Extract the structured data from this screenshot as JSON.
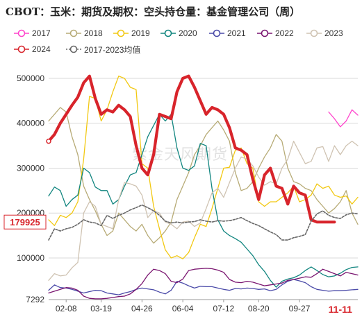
{
  "chart_data": {
    "type": "line",
    "title": "CBOT：玉米：期货及期权：空头持仓量：基金管理公司（周）",
    "ylim": [
      7292,
      520000
    ],
    "y_ticks": [
      500000,
      400000,
      300000,
      200000,
      100000,
      7292
    ],
    "y_tick_labels": [
      "500000",
      "400000",
      "300000",
      "200000",
      "100000",
      "7292"
    ],
    "x_ticks": [
      3,
      9,
      16,
      23,
      30,
      36,
      43
    ],
    "x_tick_labels": [
      "02-08",
      "03-19",
      "04-26",
      "06-04",
      "07-12",
      "08-20",
      "09-27"
    ],
    "x_highlight": {
      "x": 50,
      "label": "11-11"
    },
    "last_value_label": "179925",
    "grid": true,
    "legend_position": "top",
    "series": [
      {
        "name": "2017",
        "color": "#ff44cc",
        "width": 1.3,
        "dash": false,
        "x": [
          48,
          49,
          50,
          51,
          52,
          53
        ],
        "values": [
          425000,
          410000,
          392000,
          405000,
          430000,
          418000
        ]
      },
      {
        "name": "2018",
        "color": "#b7ab76",
        "width": 1.3,
        "dash": false,
        "x": [
          0,
          1,
          2,
          3,
          4,
          5,
          6,
          7,
          8,
          9,
          10,
          11,
          12,
          13,
          14,
          15,
          16,
          17,
          18,
          19,
          20,
          21,
          22,
          23,
          24,
          25,
          26,
          27,
          28,
          29,
          30,
          31,
          32,
          33,
          34,
          35,
          36,
          37,
          38,
          39,
          40,
          41,
          42,
          43,
          44,
          45,
          46,
          47,
          48,
          49,
          50,
          51,
          52,
          53
        ],
        "values": [
          405000,
          420000,
          435000,
          425000,
          370000,
          330000,
          260000,
          230000,
          205000,
          175000,
          150000,
          160000,
          200000,
          185000,
          170000,
          160000,
          175000,
          150000,
          133000,
          145000,
          160000,
          180000,
          230000,
          260000,
          290000,
          330000,
          350000,
          375000,
          390000,
          405000,
          385000,
          360000,
          290000,
          250000,
          255000,
          270000,
          300000,
          325000,
          345000,
          375000,
          360000,
          300000,
          270000,
          265000,
          255000,
          250000,
          230000,
          215000,
          200000,
          210000,
          225000,
          250000,
          200000,
          175000
        ]
      },
      {
        "name": "2019",
        "color": "#f2c811",
        "width": 1.3,
        "dash": false,
        "x": [
          0,
          1,
          2,
          3,
          4,
          5,
          6,
          7,
          8,
          9,
          10,
          11,
          12,
          13,
          14,
          15,
          16,
          17,
          18,
          19,
          20,
          21,
          22,
          23,
          24,
          25,
          26,
          27,
          28,
          29,
          30,
          31,
          32,
          33,
          34,
          35,
          36,
          37,
          38,
          39,
          40,
          41,
          42,
          43,
          44,
          45,
          46,
          47,
          48,
          49,
          50,
          51,
          52,
          53
        ],
        "values": [
          185000,
          172000,
          195000,
          190000,
          200000,
          225000,
          320000,
          460000,
          455000,
          405000,
          430000,
          470000,
          505000,
          500000,
          480000,
          475000,
          310000,
          300000,
          215000,
          165000,
          118000,
          100000,
          105000,
          98000,
          112000,
          145000,
          175000,
          170000,
          210000,
          255000,
          300000,
          302000,
          340000,
          345000,
          310000,
          300000,
          225000,
          215000,
          225000,
          225000,
          235000,
          245000,
          260000,
          225000,
          230000,
          240000,
          265000,
          255000,
          260000,
          240000,
          235000,
          238000,
          220000,
          235000
        ]
      },
      {
        "name": "2020",
        "color": "#11857f",
        "width": 1.3,
        "dash": false,
        "x": [
          0,
          1,
          2,
          3,
          4,
          5,
          6,
          7,
          8,
          9,
          10,
          11,
          12,
          13,
          14,
          15,
          16,
          17,
          18,
          19,
          20,
          21,
          22,
          23,
          24,
          25,
          26,
          27,
          28,
          29,
          30,
          31,
          32,
          33,
          34,
          35,
          36,
          37,
          38,
          39,
          40,
          41,
          42,
          43,
          44,
          45,
          46,
          47,
          48,
          49,
          50,
          51,
          52,
          53
        ],
        "values": [
          238000,
          258000,
          250000,
          215000,
          230000,
          240000,
          300000,
          290000,
          258000,
          250000,
          250000,
          220000,
          230000,
          260000,
          285000,
          290000,
          330000,
          370000,
          395000,
          420000,
          405000,
          420000,
          345000,
          300000,
          295000,
          305000,
          355000,
          350000,
          255000,
          185000,
          160000,
          150000,
          143000,
          135000,
          120000,
          105000,
          85000,
          70000,
          50000,
          35000,
          48000,
          53000,
          56000,
          62000,
          72000,
          80000,
          72000,
          63000,
          58000,
          60000,
          66000,
          74000,
          79000,
          80000
        ]
      },
      {
        "name": "2021",
        "color": "#4a4aa8",
        "width": 1.3,
        "dash": false,
        "x": [
          0,
          1,
          2,
          3,
          4,
          5,
          6,
          7,
          8,
          9,
          10,
          11,
          12,
          13,
          14,
          15,
          16,
          17,
          18,
          19,
          20,
          21,
          22,
          23,
          24,
          25,
          26,
          27,
          28,
          29,
          30,
          31,
          32,
          33,
          34,
          35,
          36,
          37,
          38,
          39,
          40,
          41,
          42,
          43,
          44,
          45,
          46,
          47,
          48,
          49,
          50,
          51,
          52,
          53
        ],
        "values": [
          28000,
          40000,
          34000,
          33000,
          30000,
          26000,
          22000,
          25000,
          28000,
          27000,
          22000,
          20000,
          18000,
          22000,
          25000,
          30000,
          33000,
          31000,
          29000,
          24000,
          20000,
          28000,
          48000,
          44000,
          38000,
          33000,
          37000,
          36000,
          36000,
          33000,
          30000,
          28000,
          32000,
          31000,
          33000,
          32000,
          30000,
          31000,
          27000,
          30000,
          40000,
          48000,
          52000,
          49000,
          45000,
          36000,
          30000,
          28000,
          26000,
          27000,
          27000,
          28000,
          29000,
          30000
        ]
      },
      {
        "name": "2022",
        "color": "#7a1570",
        "width": 1.3,
        "dash": false,
        "x": [
          0,
          1,
          2,
          3,
          4,
          5,
          6,
          7,
          8,
          9,
          10,
          11,
          12,
          13,
          14,
          15,
          16,
          17,
          18,
          19,
          20,
          21,
          22,
          23,
          24,
          25,
          26,
          27,
          28,
          29,
          30,
          31,
          32,
          33,
          34,
          35,
          36,
          37,
          38,
          39,
          40,
          41,
          42,
          43,
          44,
          45,
          46,
          47,
          48,
          49,
          50,
          51,
          52,
          53
        ],
        "values": [
          22000,
          26000,
          30000,
          34000,
          33000,
          28000,
          15000,
          10000,
          9000,
          9000,
          10000,
          12000,
          14000,
          15000,
          20000,
          30000,
          43000,
          62000,
          75000,
          72000,
          65000,
          48000,
          45000,
          53000,
          72000,
          75000,
          76000,
          77000,
          76000,
          73000,
          68000,
          52000,
          46000,
          45000,
          48000,
          46000,
          42000,
          38000,
          40000,
          42000,
          44000,
          50000,
          52000,
          55000,
          58000,
          57000,
          65000,
          75000,
          70000,
          65000,
          60000,
          68000,
          65000,
          62000
        ]
      },
      {
        "name": "2023",
        "color": "#cfc3b2",
        "width": 1.3,
        "dash": false,
        "x": [
          0,
          1,
          2,
          3,
          4,
          5,
          6,
          7,
          8,
          9,
          10,
          11,
          12,
          13,
          14,
          15,
          16,
          17,
          18,
          19,
          20,
          21,
          22,
          23,
          24,
          25,
          26,
          27,
          28,
          29,
          30,
          31,
          32,
          33,
          34,
          35,
          36,
          37,
          38,
          39,
          40,
          41,
          42,
          43,
          44,
          45,
          46,
          47,
          48,
          49,
          50,
          51,
          52,
          53
        ],
        "values": [
          50000,
          65000,
          60000,
          62000,
          78000,
          90000,
          200000,
          225000,
          215000,
          175000,
          170000,
          165000,
          230000,
          268000,
          265000,
          260000,
          240000,
          190000,
          205000,
          200000,
          180000,
          175000,
          165000,
          180000,
          182000,
          170000,
          178000,
          210000,
          245000,
          255000,
          235000,
          268000,
          300000,
          325000,
          320000,
          305000,
          280000,
          262000,
          270000,
          265000,
          300000,
          320000,
          360000,
          335000,
          310000,
          315000,
          345000,
          348000,
          315000,
          350000,
          330000,
          350000,
          360000,
          350000
        ]
      },
      {
        "name": "2024",
        "color": "#d8242b",
        "width": 4.2,
        "dash": false,
        "marker": "circle",
        "x": [
          0,
          1,
          2,
          3,
          4,
          5,
          6,
          7,
          8,
          9,
          10,
          11,
          12,
          13,
          14,
          15,
          16,
          17,
          18,
          19,
          20,
          21,
          22,
          23,
          24,
          25,
          26,
          27,
          28,
          29,
          30,
          31,
          32,
          33,
          34,
          35,
          36,
          37,
          38,
          39,
          40,
          41,
          42,
          43,
          44,
          45,
          46,
          47,
          48,
          49
        ],
        "values": [
          360000,
          375000,
          400000,
          420000,
          440000,
          458000,
          490000,
          505000,
          455000,
          420000,
          430000,
          425000,
          440000,
          430000,
          415000,
          350000,
          300000,
          285000,
          330000,
          420000,
          415000,
          410000,
          470000,
          500000,
          505000,
          480000,
          450000,
          420000,
          435000,
          430000,
          420000,
          390000,
          345000,
          340000,
          330000,
          275000,
          230000,
          285000,
          300000,
          260000,
          255000,
          220000,
          260000,
          245000,
          240000,
          185000,
          180000,
          179925,
          179925,
          179925
        ]
      },
      {
        "name": "2017-2023均值",
        "color": "#666666",
        "width": 1.6,
        "dash": true,
        "x": [
          0,
          1,
          2,
          3,
          4,
          5,
          6,
          7,
          8,
          9,
          10,
          11,
          12,
          13,
          14,
          15,
          16,
          17,
          18,
          19,
          20,
          21,
          22,
          23,
          24,
          25,
          26,
          27,
          28,
          29,
          30,
          31,
          32,
          33,
          34,
          35,
          36,
          37,
          38,
          39,
          40,
          41,
          42,
          43,
          44,
          45,
          46,
          47,
          48,
          49,
          50,
          51,
          52,
          53
        ],
        "values": [
          140000,
          165000,
          160000,
          165000,
          168000,
          175000,
          185000,
          180000,
          178000,
          172000,
          195000,
          188000,
          195000,
          200000,
          207000,
          212000,
          218000,
          212000,
          205000,
          195000,
          182000,
          178000,
          180000,
          178000,
          180000,
          181000,
          185000,
          182000,
          180000,
          183000,
          182000,
          183000,
          186000,
          190000,
          183000,
          177000,
          172000,
          165000,
          158000,
          152000,
          140000,
          140000,
          145000,
          148000,
          152000,
          182000,
          198000,
          205000,
          195000,
          190000,
          188000,
          196000,
          200000,
          198000
        ]
      }
    ],
    "watermark": "紫金天风期货"
  }
}
